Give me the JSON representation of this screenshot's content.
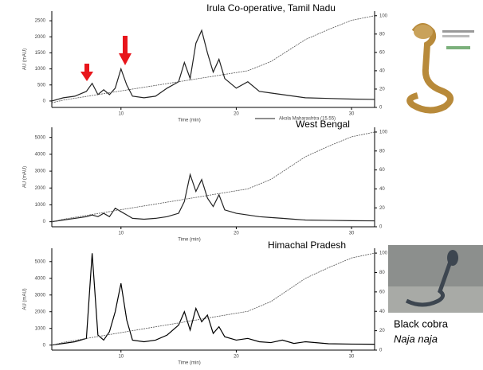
{
  "chart_data": [
    {
      "type": "line",
      "title": "Irula Co-operative, Tamil Nadu",
      "x_label": "Time (min)",
      "y_label": "AU (mAU)",
      "x": [
        4,
        5,
        6,
        7,
        7.5,
        8,
        8.5,
        9,
        9.5,
        10,
        10.5,
        11,
        12,
        13,
        14,
        15,
        15.5,
        16,
        16.5,
        17,
        17.5,
        18,
        18.5,
        19,
        20,
        21,
        22,
        23,
        24,
        25,
        26,
        28,
        30,
        32
      ],
      "series": [
        {
          "name": "Akola Maharashtra (15.55)",
          "color": "#222222",
          "values": [
            0,
            100,
            150,
            300,
            550,
            200,
            350,
            200,
            400,
            1000,
            500,
            150,
            100,
            150,
            400,
            600,
            1200,
            700,
            1800,
            2200,
            1500,
            900,
            1300,
            700,
            400,
            600,
            300,
            250,
            200,
            150,
            100,
            80,
            60,
            50
          ]
        },
        {
          "color": "#555555",
          "axis": "y2",
          "values": [
            5,
            8,
            10,
            12,
            13,
            14,
            15,
            16,
            17,
            18,
            19,
            20,
            22,
            24,
            26,
            28,
            29,
            30,
            31,
            32,
            33,
            34,
            35,
            36,
            38,
            40,
            45,
            50,
            58,
            66,
            74,
            85,
            95,
            100
          ]
        }
      ],
      "xlim": [
        4,
        32
      ],
      "xticks": [
        10,
        20,
        30
      ],
      "ylim": [
        -200,
        2800
      ],
      "yticks": [
        0,
        500,
        1000,
        1500,
        2000,
        2500
      ],
      "y2lim": [
        0,
        105
      ],
      "y2ticks": [
        0,
        20,
        40,
        60,
        80,
        100
      ]
    },
    {
      "type": "line",
      "title": "West Bengal",
      "x_label": "Time (min)",
      "y_label": "AU (mAU)",
      "x": [
        4,
        5,
        6,
        7,
        7.5,
        8,
        8.5,
        9,
        9.5,
        10,
        10.5,
        11,
        12,
        13,
        14,
        15,
        15.5,
        16,
        16.5,
        17,
        17.5,
        18,
        18.5,
        19,
        20,
        21,
        22,
        23,
        24,
        25,
        26,
        28,
        30,
        32
      ],
      "series": [
        {
          "color": "#222222",
          "values": [
            0,
            100,
            200,
            300,
            400,
            300,
            500,
            300,
            800,
            600,
            400,
            200,
            150,
            200,
            300,
            500,
            1200,
            2800,
            1800,
            2500,
            1400,
            900,
            1600,
            700,
            500,
            400,
            300,
            250,
            200,
            150,
            100,
            80,
            60,
            50
          ]
        },
        {
          "color": "#555555",
          "axis": "y2",
          "values": [
            5,
            8,
            10,
            12,
            13,
            14,
            15,
            16,
            17,
            18,
            19,
            20,
            22,
            24,
            26,
            28,
            29,
            30,
            31,
            32,
            33,
            34,
            35,
            36,
            38,
            40,
            45,
            50,
            58,
            66,
            74,
            85,
            95,
            100
          ]
        }
      ],
      "xlim": [
        4,
        32
      ],
      "xticks": [
        10,
        20,
        30
      ],
      "ylim": [
        -300,
        5600
      ],
      "yticks": [
        0,
        1000,
        2000,
        3000,
        4000,
        5000
      ],
      "y2lim": [
        0,
        105
      ],
      "y2ticks": [
        0,
        20,
        40,
        60,
        80,
        100
      ]
    },
    {
      "type": "line",
      "title": "Himachal Pradesh",
      "x_label": "Time (min)",
      "y_label": "AU (mAU)",
      "x": [
        4,
        5,
        6,
        7,
        7.5,
        8,
        8.5,
        9,
        9.5,
        10,
        10.5,
        11,
        12,
        13,
        14,
        15,
        15.5,
        16,
        16.5,
        17,
        17.5,
        18,
        18.5,
        19,
        20,
        21,
        22,
        23,
        24,
        25,
        26,
        28,
        30,
        32
      ],
      "series": [
        {
          "color": "#000000",
          "values": [
            0,
            100,
            200,
            400,
            5500,
            600,
            300,
            800,
            2000,
            3700,
            1500,
            300,
            200,
            300,
            600,
            1200,
            2000,
            900,
            2200,
            1400,
            1800,
            700,
            1100,
            500,
            300,
            400,
            200,
            150,
            300,
            100,
            200,
            80,
            60,
            50
          ]
        },
        {
          "color": "#555555",
          "axis": "y2",
          "values": [
            5,
            8,
            10,
            12,
            13,
            14,
            15,
            16,
            17,
            18,
            19,
            20,
            22,
            24,
            26,
            28,
            29,
            30,
            31,
            32,
            33,
            34,
            35,
            36,
            38,
            40,
            45,
            50,
            58,
            66,
            74,
            85,
            95,
            100
          ]
        }
      ],
      "xlim": [
        4,
        32
      ],
      "xticks": [
        10,
        20,
        30
      ],
      "ylim": [
        -300,
        5800
      ],
      "yticks": [
        0,
        1000,
        2000,
        3000,
        4000,
        5000
      ],
      "y2lim": [
        0,
        105
      ],
      "y2ticks": [
        0,
        20,
        40,
        60,
        80,
        100
      ]
    }
  ],
  "captions": {
    "common_name": "Black cobra",
    "scientific_name": "Naja naja"
  }
}
